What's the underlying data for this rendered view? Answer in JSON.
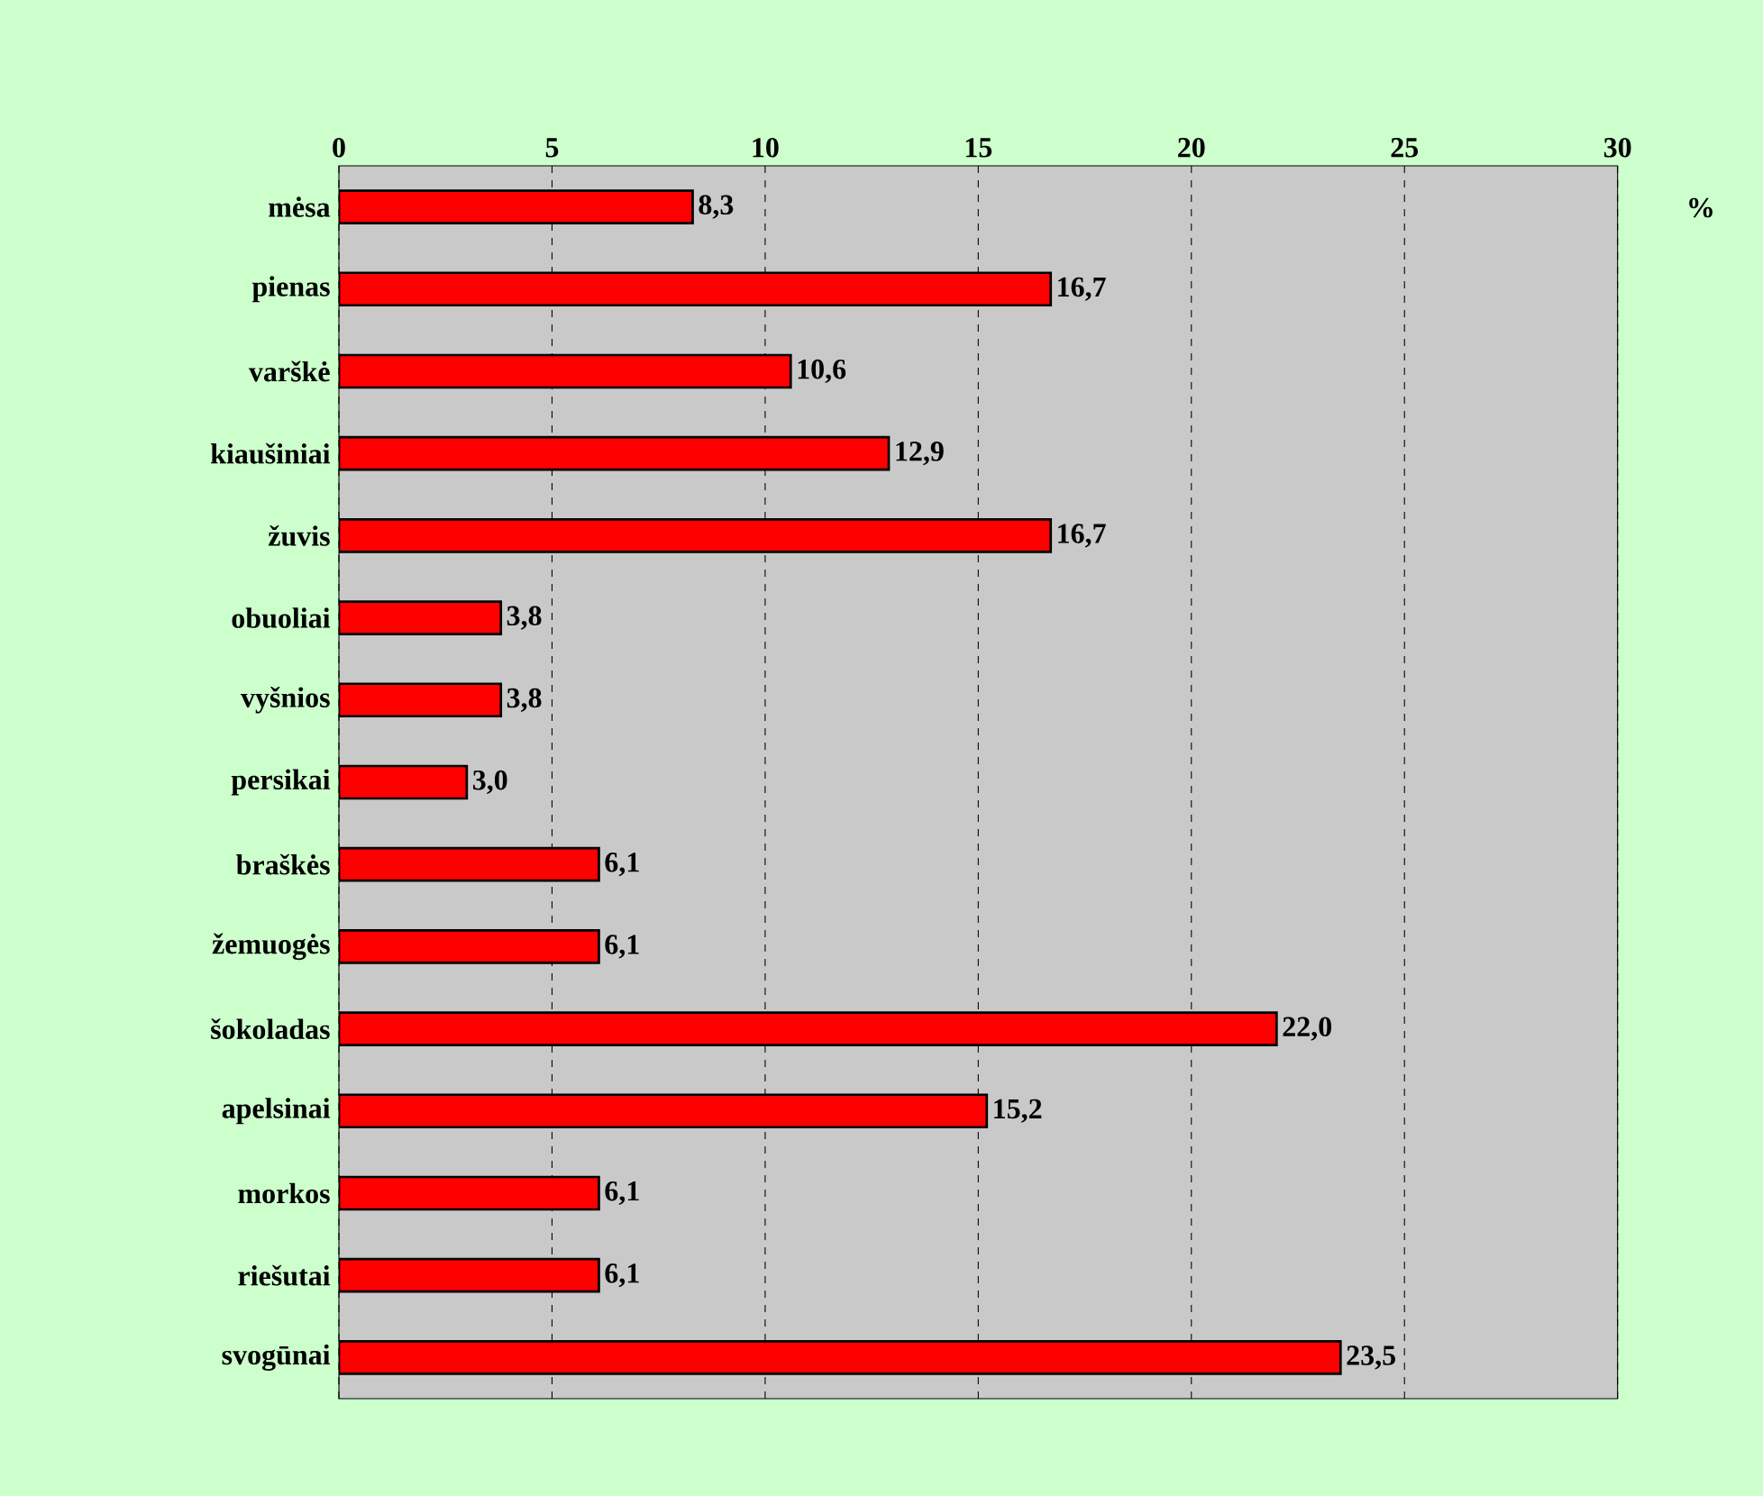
{
  "chart_data": {
    "type": "bar",
    "orientation": "horizontal",
    "xlabel": "%",
    "categories": [
      "mėsa",
      "pienas",
      "varškė",
      "kiaušiniai",
      "žuvis",
      "obuoliai",
      "vyšnios",
      "persikai",
      "braškės",
      "žemuogės",
      "šokoladas",
      "apelsinai",
      "morkos",
      "riešutai",
      "svogūnai"
    ],
    "values": [
      8.3,
      16.7,
      10.6,
      12.9,
      16.7,
      3.8,
      3.8,
      3.0,
      6.1,
      6.1,
      22.0,
      15.2,
      6.1,
      6.1,
      23.5
    ],
    "value_labels": [
      "8,3",
      "16,7",
      "10,6",
      "12,9",
      "16,7",
      "3,8",
      "3,8",
      "3,0",
      "6,1",
      "6,1",
      "22,0",
      "15,2",
      "6,1",
      "6,1",
      "23,5"
    ],
    "color": "#ff0000",
    "xlim": [
      0,
      30
    ],
    "xticks": [
      0,
      5,
      10,
      15,
      20,
      25,
      30
    ],
    "grid": "x"
  }
}
